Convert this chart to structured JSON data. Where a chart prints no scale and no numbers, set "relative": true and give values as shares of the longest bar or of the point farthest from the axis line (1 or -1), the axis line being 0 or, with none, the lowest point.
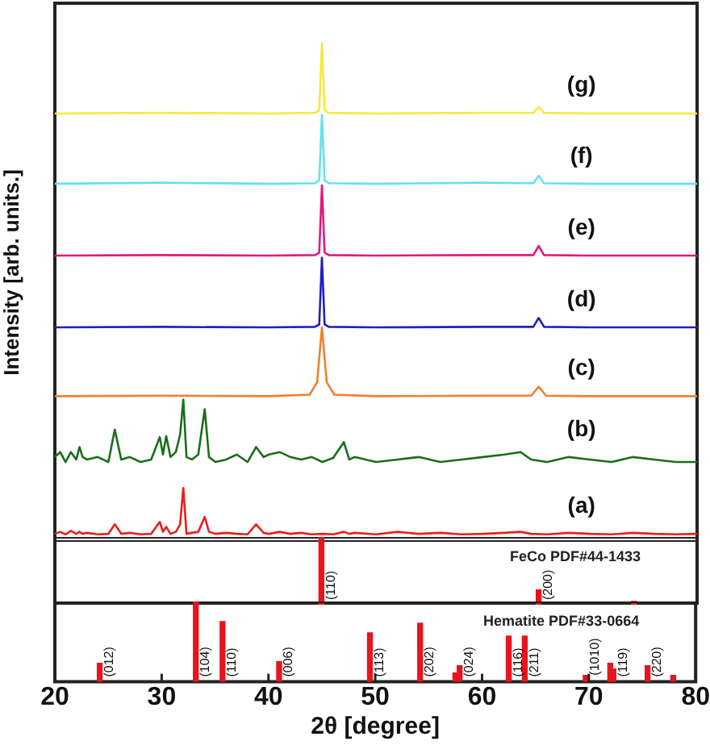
{
  "chart_data": [
    {
      "type": "line",
      "relative": true,
      "ylabel": "Intensity [arb. units.]",
      "xlim": [
        20,
        80
      ],
      "xticks": [
        20,
        30,
        40,
        50,
        60,
        70,
        80
      ],
      "tick_labels": false,
      "grid": false,
      "legend": false,
      "marker": "none",
      "x": [
        20,
        20.5,
        21,
        21.5,
        22,
        22.3,
        22.6,
        23,
        24,
        25,
        25.6,
        26.2,
        27,
        28,
        29,
        29.8,
        30.1,
        30.4,
        30.8,
        31.3,
        31.7,
        32.0,
        32.3,
        32.8,
        33.4,
        34.0,
        34.4,
        35,
        36,
        37,
        38,
        38.8,
        39.5,
        40,
        41,
        42,
        43,
        44,
        45,
        46,
        47,
        47.5,
        48,
        50,
        52,
        54,
        56,
        58,
        60,
        62,
        63.5,
        64.5,
        66,
        68,
        70,
        72,
        74,
        76,
        78,
        80
      ],
      "series": [
        {
          "name": "(a)",
          "color": "#e8201c",
          "values": [
            0.016,
            0.02,
            0.015,
            0.022,
            0.016,
            0.02,
            0.016,
            0.018,
            0.015,
            0.016,
            0.035,
            0.016,
            0.018,
            0.015,
            0.016,
            0.04,
            0.02,
            0.03,
            0.016,
            0.02,
            0.035,
            0.108,
            0.016,
            0.018,
            0.02,
            0.05,
            0.02,
            0.016,
            0.018,
            0.016,
            0.015,
            0.035,
            0.018,
            0.016,
            0.02,
            0.016,
            0.018,
            0.015,
            0.016,
            0.015,
            0.02,
            0.016,
            0.018,
            0.015,
            0.02,
            0.016,
            0.018,
            0.015,
            0.016,
            0.018,
            0.02,
            0.016,
            0.015,
            0.018,
            0.016,
            0.015,
            0.018,
            0.016,
            0.015,
            0.016
          ]
        },
        {
          "name": "(b)",
          "color": "#1a6e1a",
          "values": [
            0.17,
            0.18,
            0.16,
            0.18,
            0.165,
            0.19,
            0.17,
            0.165,
            0.17,
            0.16,
            0.225,
            0.165,
            0.17,
            0.16,
            0.165,
            0.21,
            0.175,
            0.212,
            0.17,
            0.18,
            0.215,
            0.285,
            0.17,
            0.165,
            0.175,
            0.266,
            0.17,
            0.16,
            0.165,
            0.175,
            0.16,
            0.19,
            0.17,
            0.175,
            0.18,
            0.17,
            0.165,
            0.17,
            0.16,
            0.168,
            0.2,
            0.165,
            0.17,
            0.16,
            0.165,
            0.17,
            0.16,
            0.165,
            0.17,
            0.175,
            0.18,
            0.165,
            0.16,
            0.17,
            0.165,
            0.16,
            0.17,
            0.165,
            0.16,
            0.16
          ]
        },
        {
          "name": "(c)",
          "color": "#f07f30",
          "x": [
            20,
            30,
            40,
            43.8,
            44.5,
            44.95,
            45.4,
            46.1,
            50,
            60,
            64.5,
            65.2,
            65.9,
            70,
            80
          ],
          "values": [
            0.292,
            0.293,
            0.292,
            0.295,
            0.32,
            0.43,
            0.32,
            0.295,
            0.292,
            0.293,
            0.293,
            0.311,
            0.293,
            0.292,
            0.292
          ]
        },
        {
          "name": "(d)",
          "color": "#2020c0",
          "x": [
            20,
            30,
            40,
            44.3,
            44.7,
            44.95,
            45.2,
            45.6,
            50,
            60,
            64.7,
            65.2,
            65.7,
            70,
            80
          ],
          "values": [
            0.43,
            0.431,
            0.43,
            0.431,
            0.436,
            0.57,
            0.436,
            0.431,
            0.43,
            0.431,
            0.431,
            0.449,
            0.431,
            0.43,
            0.43
          ]
        },
        {
          "name": "(e)",
          "color": "#e0197f",
          "x": [
            20,
            30,
            40,
            44.3,
            44.7,
            44.95,
            45.2,
            45.6,
            50,
            60,
            64.7,
            65.2,
            65.7,
            70,
            80
          ],
          "values": [
            0.574,
            0.575,
            0.574,
            0.575,
            0.58,
            0.715,
            0.58,
            0.575,
            0.574,
            0.575,
            0.575,
            0.593,
            0.575,
            0.574,
            0.574
          ]
        },
        {
          "name": "(f)",
          "color": "#66e0f0",
          "x": [
            20,
            30,
            40,
            44.3,
            44.7,
            44.95,
            45.2,
            45.6,
            50,
            60,
            64.7,
            65.2,
            65.7,
            70,
            80
          ],
          "values": [
            0.718,
            0.72,
            0.718,
            0.719,
            0.725,
            0.856,
            0.725,
            0.719,
            0.718,
            0.72,
            0.719,
            0.734,
            0.719,
            0.718,
            0.718
          ]
        },
        {
          "name": "(g)",
          "color": "#f5e83a",
          "x": [
            20,
            30,
            40,
            44.3,
            44.7,
            44.95,
            45.2,
            45.6,
            50,
            60,
            64.7,
            65.2,
            65.7,
            70,
            80
          ],
          "values": [
            0.859,
            0.86,
            0.859,
            0.86,
            0.865,
            1.0,
            0.865,
            0.86,
            0.859,
            0.86,
            0.86,
            0.872,
            0.86,
            0.859,
            0.859
          ]
        }
      ]
    },
    {
      "type": "bar",
      "relative": true,
      "title": "FeCo PDF#44-1433",
      "xlim": [
        20,
        80
      ],
      "xticks": [
        20,
        30,
        40,
        50,
        60,
        70,
        80
      ],
      "tick_labels": false,
      "grid": false,
      "legend": false,
      "x": [
        44.9,
        65.2,
        74.1
      ],
      "series": [
        {
          "color": "#e8141c",
          "values": [
            1,
            0.22,
            0.05
          ]
        }
      ],
      "annotations": [
        {
          "text": "(110)",
          "x": 44.9
        },
        {
          "text": "(200)",
          "x": 65.2
        }
      ]
    },
    {
      "type": "bar",
      "relative": true,
      "title": "Hematite PDF#33-0664",
      "xlabel": "2θ [degree]",
      "xlim": [
        20,
        80
      ],
      "xticks": [
        20,
        30,
        40,
        50,
        60,
        70,
        80
      ],
      "tick_labels": "x",
      "grid": false,
      "legend": false,
      "x": [
        24.2,
        33.2,
        35.7,
        41.0,
        49.5,
        54.2,
        57.5,
        57.9,
        62.5,
        64.0,
        69.7,
        72.0,
        72.3,
        75.5,
        77.9
      ],
      "series": [
        {
          "color": "#e8141c",
          "values": [
            0.23,
            1,
            0.75,
            0.25,
            0.61,
            0.73,
            0.11,
            0.2,
            0.57,
            0.57,
            0.08,
            0.23,
            0.16,
            0.2,
            0.08
          ]
        }
      ],
      "annotations": [
        {
          "text": "(012)",
          "x": 24.2
        },
        {
          "text": "(104)",
          "x": 33.2
        },
        {
          "text": "(110)",
          "x": 35.7
        },
        {
          "text": "(006)",
          "x": 41.0
        },
        {
          "text": "(113)",
          "x": 49.5
        },
        {
          "text": "(202)",
          "x": 54.2
        },
        {
          "text": "(024)",
          "x": 57.9
        },
        {
          "text": "(116)",
          "x": 62.5
        },
        {
          "text": "(211)",
          "x": 64.0
        },
        {
          "text": "(1010)",
          "x": 69.7,
          "y": 0.08
        },
        {
          "text": "(119)",
          "x": 72.3
        },
        {
          "text": "(220)",
          "x": 75.5
        }
      ]
    }
  ]
}
